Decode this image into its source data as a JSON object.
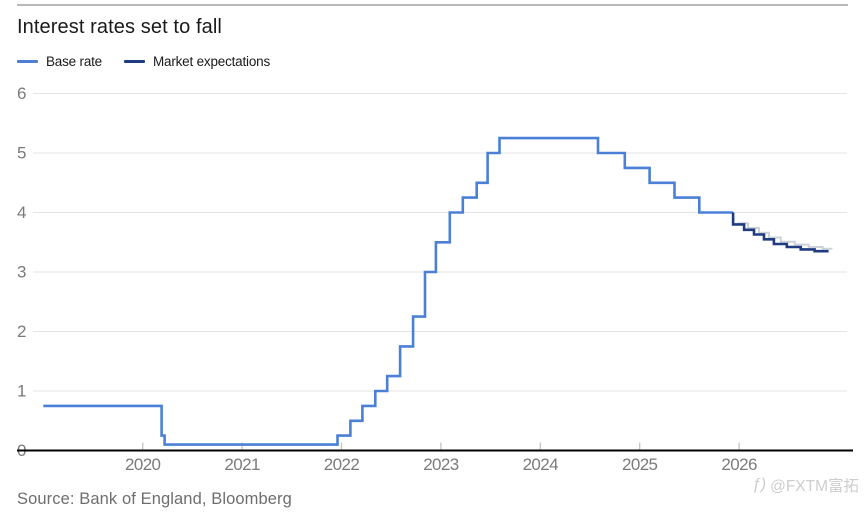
{
  "header": {
    "title": "Interest rates set to fall"
  },
  "legend": [
    {
      "label": "Base rate",
      "color": "#4b80d6"
    },
    {
      "label": "Market expectations",
      "color": "#1e3c7f"
    }
  ],
  "footer": {
    "source": "Source: Bank of England, Bloomberg",
    "watermark": "@FXTM富拓",
    "watermark_logo": "fxtm-logo"
  },
  "chart_data": {
    "type": "line",
    "step": true,
    "title": "Interest rates set to fall",
    "xlabel": "",
    "ylabel": "",
    "ylim": [
      0,
      6
    ],
    "xlim": [
      2019.0,
      2027.05
    ],
    "yticks": [
      0,
      1,
      2,
      3,
      4,
      5,
      6
    ],
    "xticks": [
      2020,
      2021,
      2022,
      2023,
      2024,
      2025,
      2026
    ],
    "grid": "horizontal",
    "legend_position": "top-left",
    "series": [
      {
        "name": "Base rate",
        "color": "#4b80d6",
        "points": [
          [
            2019.0,
            0.75
          ],
          [
            2020.19,
            0.25
          ],
          [
            2020.22,
            0.1
          ],
          [
            2021.96,
            0.25
          ],
          [
            2022.09,
            0.5
          ],
          [
            2022.21,
            0.75
          ],
          [
            2022.34,
            1.0
          ],
          [
            2022.46,
            1.25
          ],
          [
            2022.59,
            1.75
          ],
          [
            2022.72,
            2.25
          ],
          [
            2022.84,
            3.0
          ],
          [
            2022.95,
            3.5
          ],
          [
            2023.09,
            4.0
          ],
          [
            2023.22,
            4.25
          ],
          [
            2023.36,
            4.5
          ],
          [
            2023.47,
            5.0
          ],
          [
            2023.59,
            5.25
          ],
          [
            2024.58,
            5.0
          ],
          [
            2024.85,
            4.75
          ],
          [
            2025.1,
            4.5
          ],
          [
            2025.35,
            4.25
          ],
          [
            2025.6,
            4.0
          ],
          [
            2025.94,
            4.0
          ]
        ]
      },
      {
        "name": "Market expectations",
        "color": "#1e3c7f",
        "points": [
          [
            2025.94,
            4.0
          ],
          [
            2025.94,
            3.8
          ],
          [
            2026.05,
            3.71
          ],
          [
            2026.15,
            3.63
          ],
          [
            2026.25,
            3.55
          ],
          [
            2026.35,
            3.47
          ],
          [
            2026.48,
            3.42
          ],
          [
            2026.62,
            3.38
          ],
          [
            2026.76,
            3.35
          ],
          [
            2026.9,
            3.35
          ]
        ]
      }
    ],
    "ghost_series": {
      "points": [
        [
          2025.98,
          3.82
        ],
        [
          2026.09,
          3.74
        ],
        [
          2026.2,
          3.66
        ],
        [
          2026.3,
          3.58
        ],
        [
          2026.42,
          3.51
        ],
        [
          2026.56,
          3.46
        ],
        [
          2026.7,
          3.42
        ],
        [
          2026.84,
          3.39
        ],
        [
          2026.93,
          3.38
        ]
      ]
    }
  }
}
